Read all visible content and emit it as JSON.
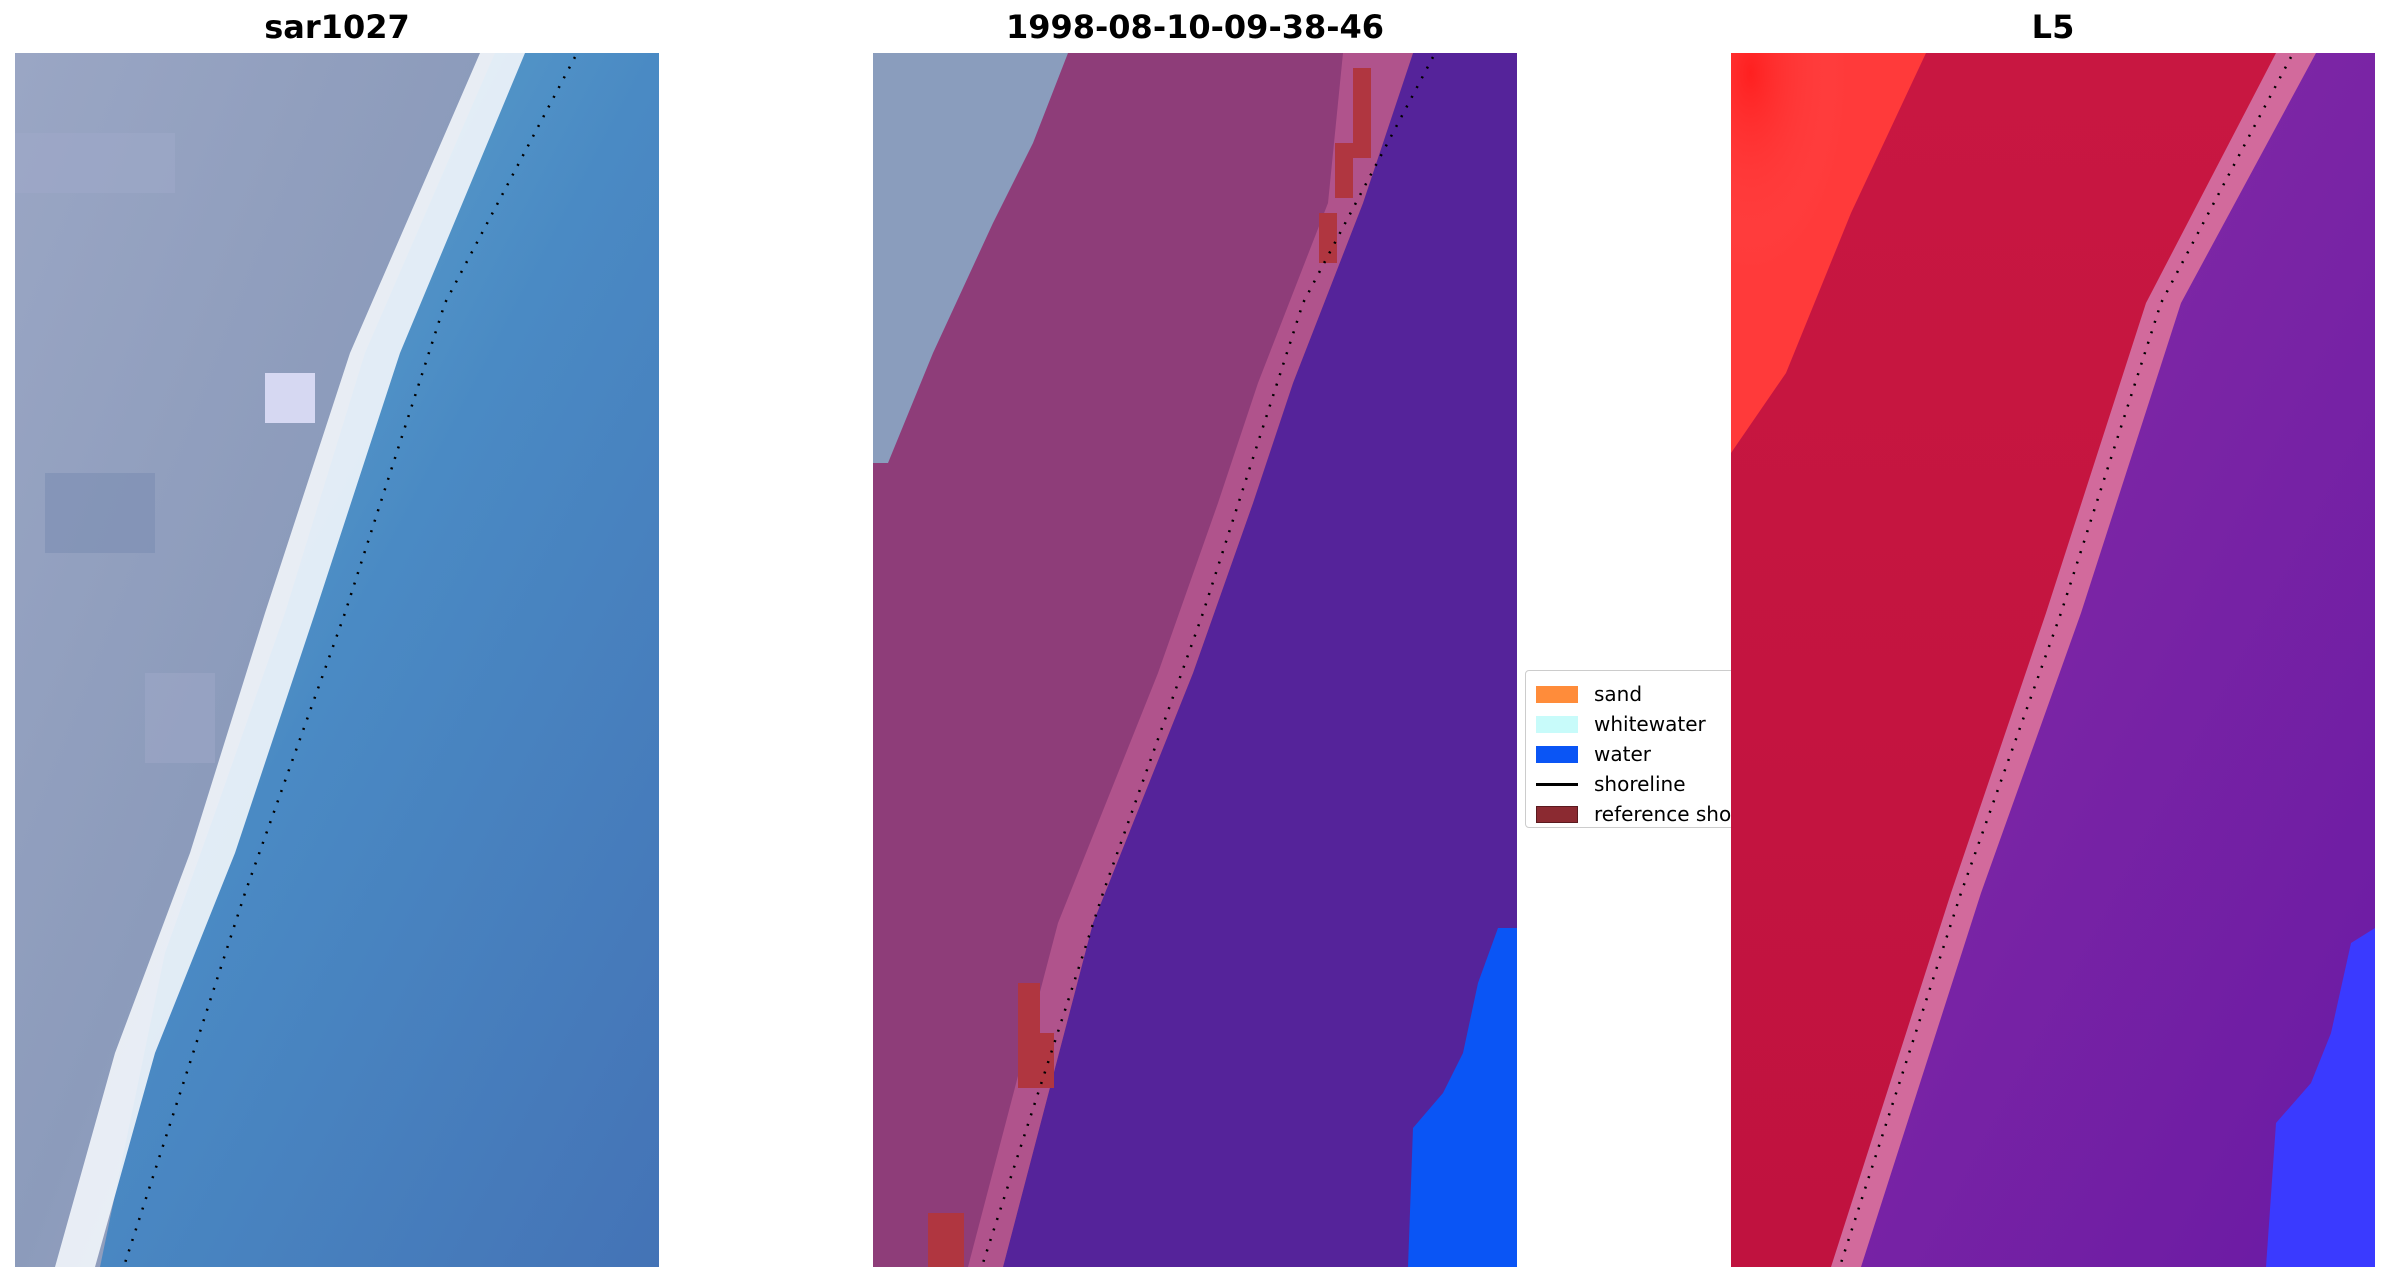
{
  "panels": [
    {
      "title": "sar1027",
      "image_kind": "rgb-satellite-image"
    },
    {
      "title": "1998-08-10-09-38-46",
      "image_kind": "classified-overlay-image"
    },
    {
      "title": "L5",
      "image_kind": "mndwi-colormap-image"
    }
  ],
  "legend": {
    "items": [
      {
        "label": "sand",
        "color": "#ff8c3a",
        "kind": "patch"
      },
      {
        "label": "whitewater",
        "color": "#c8fbfa",
        "kind": "patch"
      },
      {
        "label": "water",
        "color": "#0a55f5",
        "kind": "patch"
      },
      {
        "label": "shoreline",
        "color": "#000000",
        "kind": "line"
      },
      {
        "label": "reference shoreline",
        "color": "#8b2a31",
        "kind": "patch"
      }
    ]
  },
  "colors": {
    "land_grey": "#8c9bbb",
    "beach_white": "#f2f6fb",
    "sea_blue": "#4a8ac4",
    "overlay_land": "#8e3d79",
    "overlay_sea": "#55239a",
    "overlay_water": "#0a55f5",
    "overlay_ref": "#b03640",
    "index_land": "#c0123f",
    "index_land_bright": "#ff2020",
    "index_sea": "#6a1aa4",
    "index_water": "#3a3aff",
    "shoreline_dots": "#000000"
  }
}
